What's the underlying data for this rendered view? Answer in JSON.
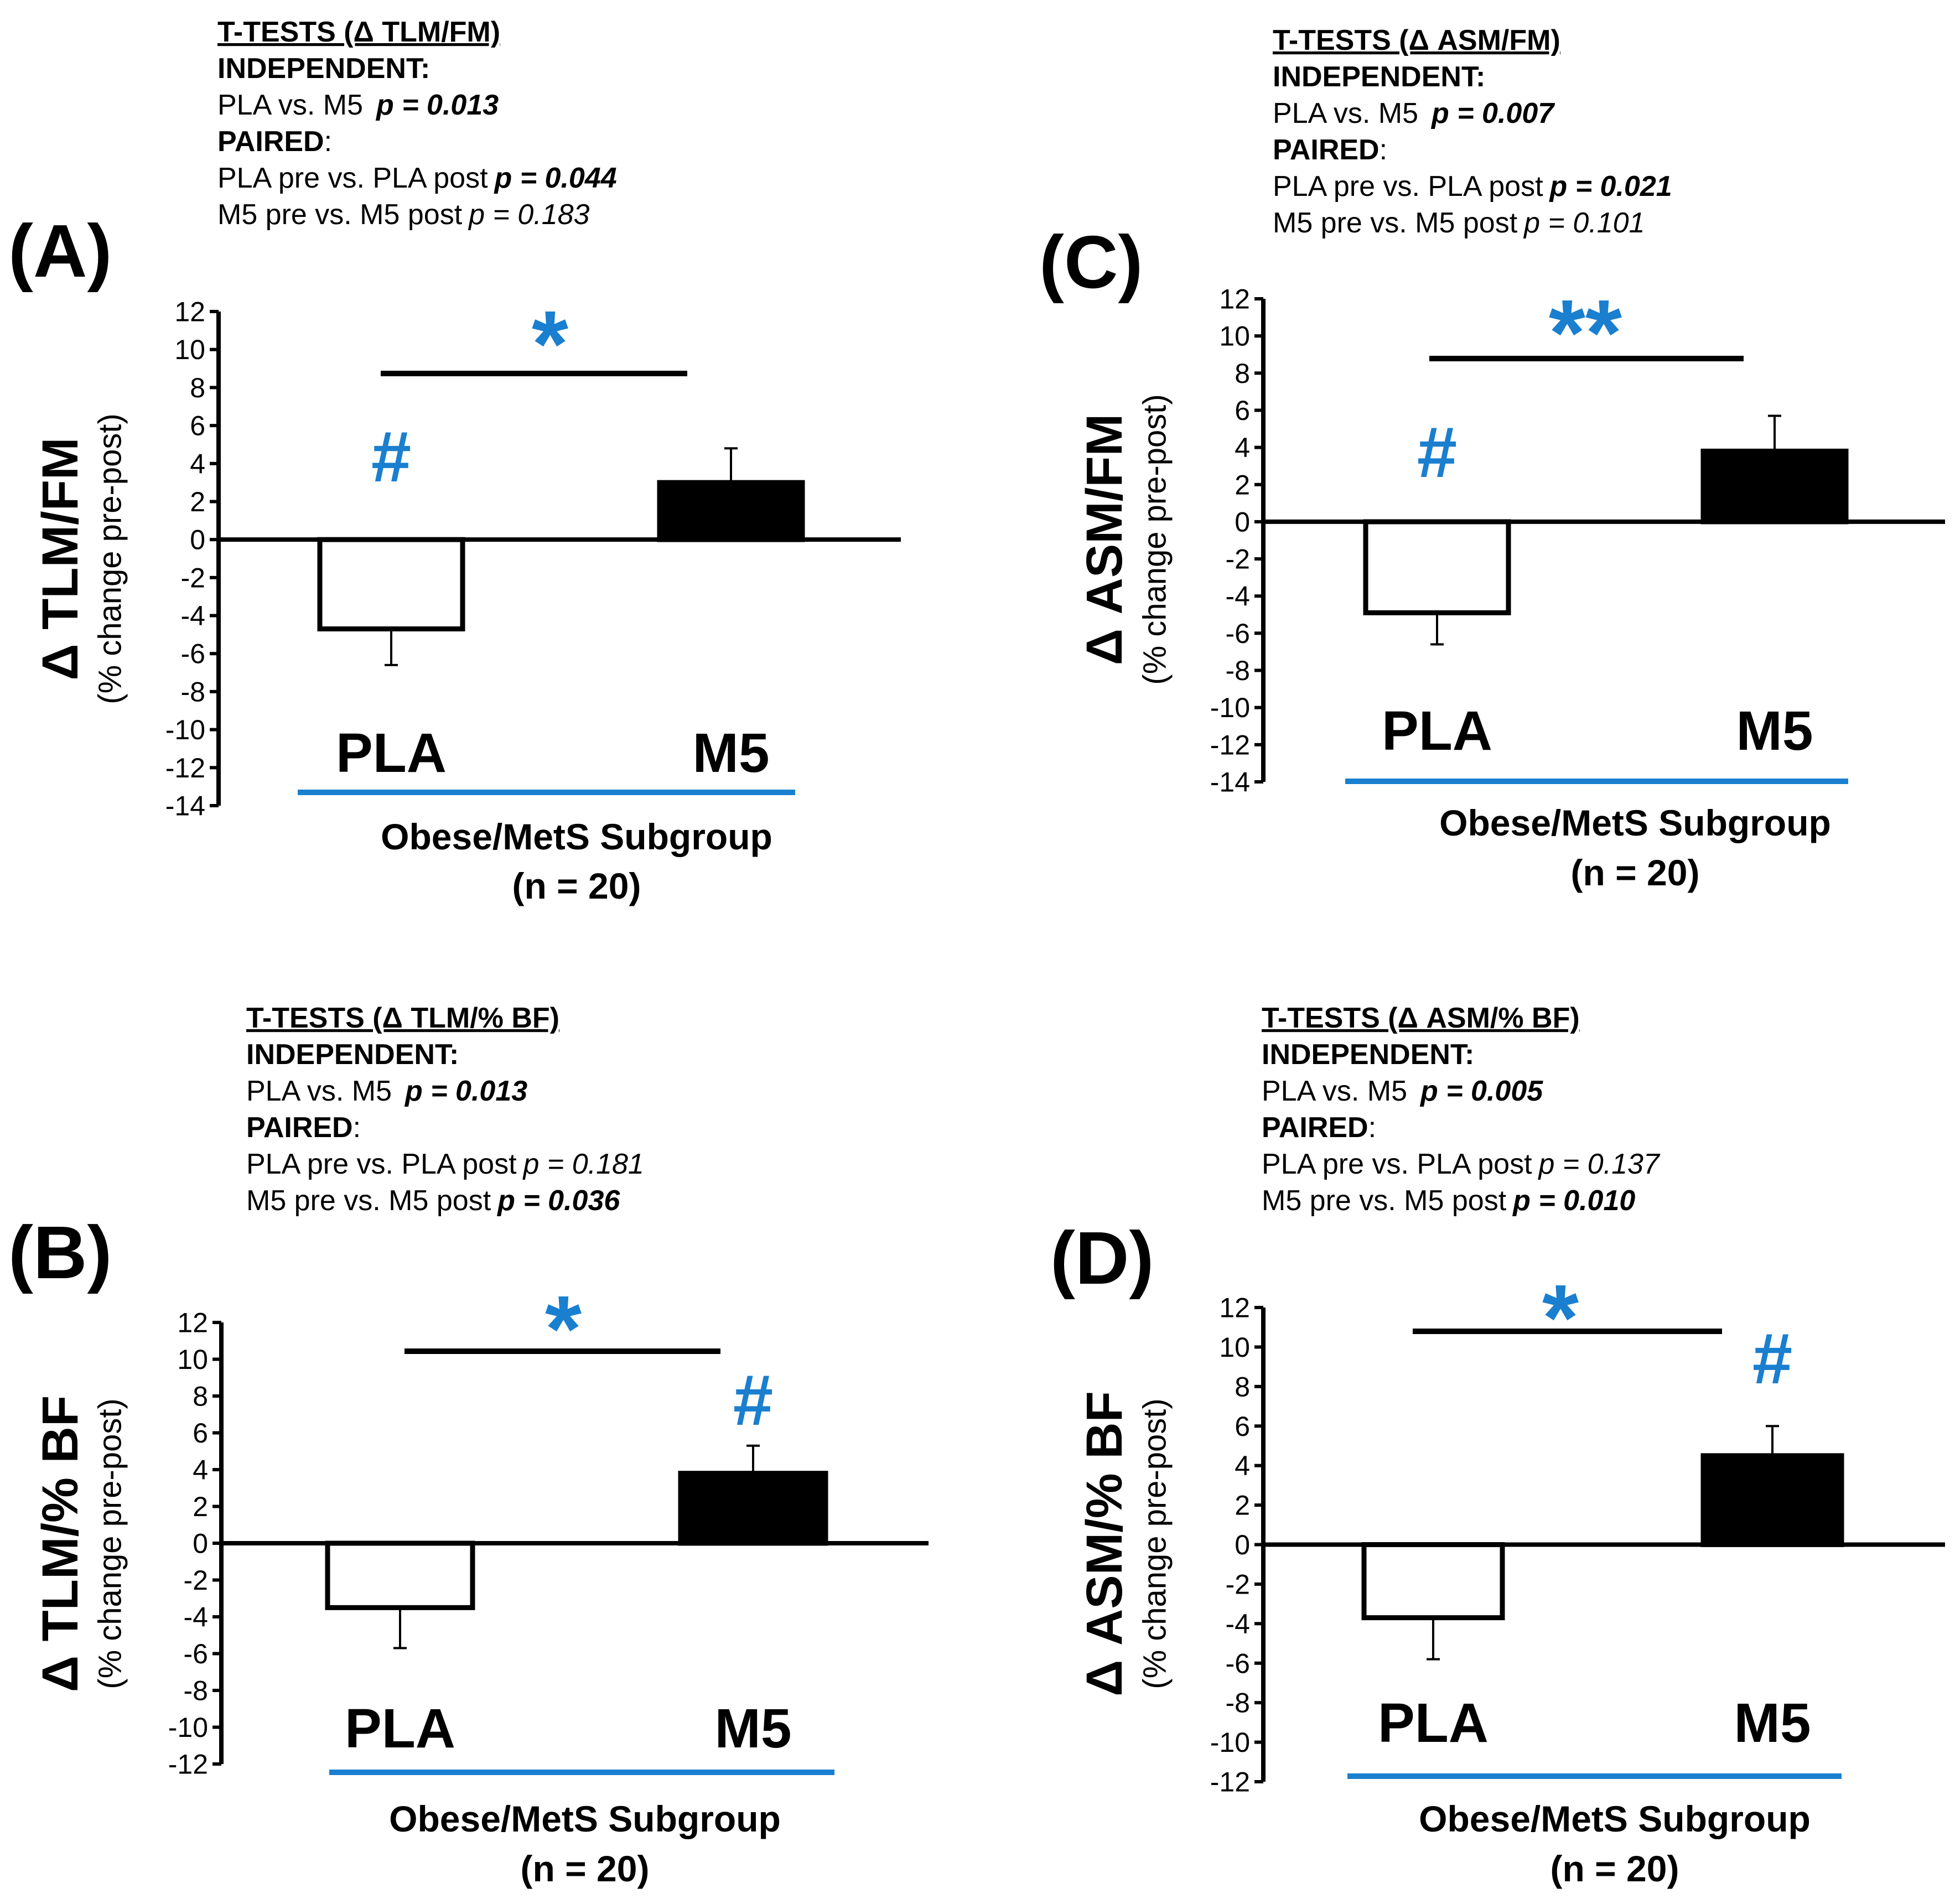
{
  "colors": {
    "accent": "#1a7fcf",
    "ink": "#000000",
    "open_bar": "#ffffff",
    "filled_bar": "#000000"
  },
  "chart_data": [
    {
      "panel": "(A)",
      "type": "bar",
      "ylabel": "Δ TLM/FM",
      "ylabel_sub": "(% change pre-post)",
      "ylim": [
        -14,
        12
      ],
      "yticks": [
        "12",
        "10",
        "8",
        "6",
        "4",
        "2",
        "0",
        "-2",
        "-4",
        "-6",
        "-8",
        "-10",
        "-12",
        "-14"
      ],
      "categories": [
        "PLA",
        "M5"
      ],
      "values": [
        -4.7,
        3.0
      ],
      "errors": [
        1.9,
        1.8
      ],
      "bar_styles": [
        "open",
        "filled"
      ],
      "group_label": "Obese/MetS Subgroup",
      "group_n": "(n = 20)",
      "significance": "*",
      "hash_on": "PLA",
      "hash_symbol": "#",
      "stats": {
        "title": "T-TESTS (Δ TLM/FM)",
        "independent_label": "INDEPENDENT:",
        "independent_line": "PLA vs. M5",
        "independent_p": "p =  0.013",
        "paired_label": "PAIRED",
        "paired_colon": ":",
        "pla_line": "PLA pre vs. PLA post",
        "pla_p": "p = 0.044",
        "pla_p_bold": true,
        "m5_line": "M5 pre vs. M5 post",
        "m5_p": "p =  0.183",
        "m5_p_bold": false
      }
    },
    {
      "panel": "(B)",
      "type": "bar",
      "ylabel": "Δ TLM/% BF",
      "ylabel_sub": "(% change pre-post)",
      "ylim": [
        -12,
        12
      ],
      "yticks": [
        "12",
        "10",
        "8",
        "6",
        "4",
        "2",
        "0",
        "-2",
        "-4",
        "-6",
        "-8",
        "-10",
        "-12"
      ],
      "categories": [
        "PLA",
        "M5"
      ],
      "values": [
        -3.5,
        3.8
      ],
      "errors": [
        2.2,
        1.5
      ],
      "bar_styles": [
        "open",
        "filled"
      ],
      "group_label": "Obese/MetS Subgroup",
      "group_n": "(n = 20)",
      "significance": "*",
      "hash_on": "M5",
      "hash_symbol": "#",
      "stats": {
        "title": "T-TESTS (Δ TLM/% BF)",
        "independent_label": "INDEPENDENT:",
        "independent_line": "PLA vs. M5",
        "independent_p": "p =  0.013",
        "paired_label": "PAIRED",
        "paired_colon": ":",
        "pla_line": "PLA pre vs. PLA post",
        "pla_p": "p = 0.181",
        "pla_p_bold": false,
        "m5_line": "M5 pre vs. M5 post",
        "m5_p": "p =  0.036",
        "m5_p_bold": true
      }
    },
    {
      "panel": "(C)",
      "type": "bar",
      "ylabel": "Δ ASM/FM",
      "ylabel_sub": "(% change pre-post)",
      "ylim": [
        -14,
        12
      ],
      "yticks": [
        "12",
        "10",
        "8",
        "6",
        "4",
        "2",
        "0",
        "-2",
        "-4",
        "-6",
        "-8",
        "-10",
        "-12",
        "-14"
      ],
      "categories": [
        "PLA",
        "M5"
      ],
      "values": [
        -4.9,
        3.8
      ],
      "errors": [
        1.7,
        1.9
      ],
      "bar_styles": [
        "open",
        "filled"
      ],
      "group_label": "Obese/MetS Subgroup",
      "group_n": "(n = 20)",
      "significance": "**",
      "hash_on": "PLA",
      "hash_symbol": "#",
      "stats": {
        "title": "T-TESTS (Δ ASM/FM)",
        "independent_label": "INDEPENDENT:",
        "independent_line": "PLA vs. M5",
        "independent_p": "p =  0.007",
        "paired_label": "PAIRED",
        "paired_colon": ":",
        "pla_line": "PLA pre vs. PLA post",
        "pla_p": "p = 0.021",
        "pla_p_bold": true,
        "m5_line": "M5 pre vs. M5 post",
        "m5_p": "p =  0.101",
        "m5_p_bold": false
      }
    },
    {
      "panel": "(D)",
      "type": "bar",
      "ylabel": "Δ ASM/% BF",
      "ylabel_sub": "(% change pre-post)",
      "ylim": [
        -12,
        12
      ],
      "yticks": [
        "12",
        "10",
        "8",
        "6",
        "4",
        "2",
        "0",
        "-2",
        "-4",
        "-6",
        "-8",
        "-10",
        "-12"
      ],
      "categories": [
        "PLA",
        "M5"
      ],
      "values": [
        -3.7,
        4.5
      ],
      "errors": [
        2.1,
        1.5
      ],
      "bar_styles": [
        "open",
        "filled"
      ],
      "group_label": "Obese/MetS Subgroup",
      "group_n": "(n = 20)",
      "significance": "*",
      "hash_on": "M5",
      "hash_symbol": "#",
      "stats": {
        "title": "T-TESTS (Δ ASM/% BF)",
        "independent_label": "INDEPENDENT:",
        "independent_line": "PLA vs. M5",
        "independent_p": "p =  0.005",
        "paired_label": "PAIRED",
        "paired_colon": ":",
        "pla_line": "PLA pre vs. PLA post",
        "pla_p": "p = 0.137",
        "pla_p_bold": false,
        "m5_line": "M5 pre vs. M5 post",
        "m5_p": "p =  0.010",
        "m5_p_bold": true
      }
    }
  ]
}
